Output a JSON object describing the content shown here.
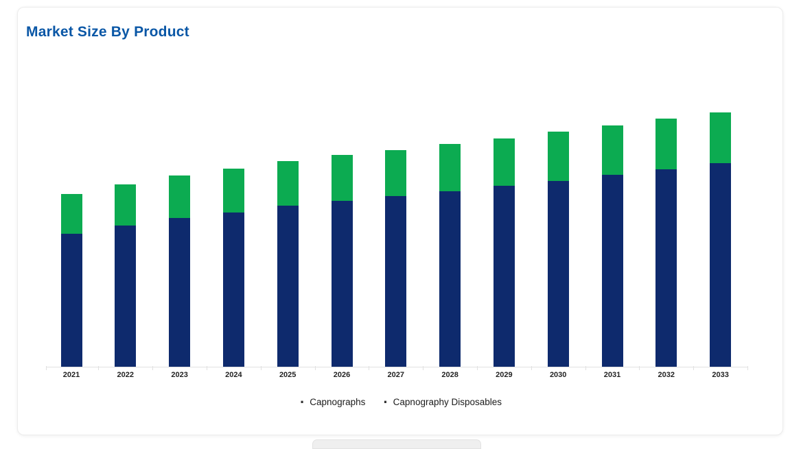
{
  "card": {
    "title": "Market Size By Product"
  },
  "chart_data": {
    "type": "bar",
    "stacked": true,
    "title": "Market Size By Product",
    "categories": [
      "2021",
      "2022",
      "2023",
      "2024",
      "2025",
      "2026",
      "2027",
      "2028",
      "2029",
      "2030",
      "2031",
      "2032",
      "2033"
    ],
    "series": [
      {
        "name": "Capnographs",
        "color": "#0e2a6d",
        "values": [
          194,
          206,
          217,
          225,
          235,
          242,
          249,
          256,
          264,
          271,
          280,
          288,
          297
        ]
      },
      {
        "name": "Capnography Disposables",
        "color": "#0cab51",
        "values": [
          58,
          60,
          62,
          64,
          65,
          67,
          67,
          69,
          69,
          72,
          72,
          74,
          74
        ]
      }
    ],
    "totals": [
      252,
      266,
      279,
      289,
      300,
      309,
      316,
      325,
      333,
      343,
      352,
      362,
      371
    ],
    "xlabel": "",
    "ylabel": "",
    "units": "arbitrary (no y-axis shown in chart)",
    "y_axis_visible": false,
    "grid": false,
    "legend_position": "bottom",
    "legend_marker": "·"
  },
  "colors": {
    "title_blue": "#0a57a6",
    "capnographs_navy": "#0e2a6d",
    "disposables_green": "#0cab51",
    "axis_gray": "#e0e0e0",
    "x_label_dark": "#222222",
    "legend_text": "#1a1a1a"
  }
}
